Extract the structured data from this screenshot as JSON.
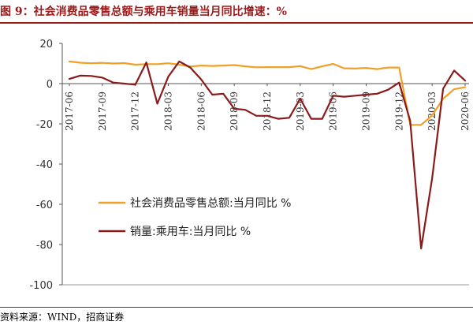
{
  "title": "图 9：社会消费品零售总额与乘用车销量当月同比增速：%",
  "source": "资料来源：WIND，招商证券",
  "colors": {
    "retail": "#f0a029",
    "auto": "#8b1a1a",
    "accent": "#9b1a1a"
  },
  "chart_data": {
    "type": "line",
    "title": "",
    "xlabel": "",
    "ylabel": "",
    "ylim": [
      -100,
      20
    ],
    "yticks": [
      20,
      0,
      -20,
      -40,
      -60,
      -80,
      -100
    ],
    "x": [
      "2017-06",
      "2017-07",
      "2017-08",
      "2017-09",
      "2017-10",
      "2017-11",
      "2017-12",
      "2018-01",
      "2018-02",
      "2018-03",
      "2018-04",
      "2018-05",
      "2018-06",
      "2018-07",
      "2018-08",
      "2018-09",
      "2018-10",
      "2018-11",
      "2018-12",
      "2019-01",
      "2019-02",
      "2019-03",
      "2019-04",
      "2019-05",
      "2019-06",
      "2019-07",
      "2019-08",
      "2019-09",
      "2019-10",
      "2019-11",
      "2019-12",
      "2020-01",
      "2020-02",
      "2020-03",
      "2020-04",
      "2020-05",
      "2020-06"
    ],
    "xtick_labels": [
      "2017-06",
      "2017-09",
      "2017-12",
      "2018-03",
      "2018-06",
      "2018-09",
      "2018-12",
      "2019-03",
      "2019-06",
      "2019-09",
      "2019-12",
      "2020-03",
      "2020-06"
    ],
    "legend": "inside-center-left",
    "series": [
      {
        "name": "社会消费品零售总额:当月同比 %",
        "values": [
          11.0,
          10.4,
          10.1,
          10.3,
          10.0,
          10.2,
          9.4,
          9.7,
          9.7,
          10.1,
          9.4,
          8.5,
          9.0,
          8.8,
          9.0,
          9.2,
          8.6,
          8.1,
          8.2,
          8.2,
          8.2,
          8.7,
          7.2,
          8.6,
          9.8,
          7.6,
          7.5,
          7.8,
          7.2,
          8.0,
          8.0,
          -20.5,
          -20.5,
          -15.8,
          -7.5,
          -2.8,
          -1.8
        ]
      },
      {
        "name": "销量:乘用车:当月同比 %",
        "values": [
          2.3,
          4.0,
          3.8,
          3.0,
          0.5,
          0.0,
          -0.5,
          10.5,
          -10.0,
          3.5,
          11.0,
          8.0,
          2.0,
          -5.5,
          -5.0,
          -12.5,
          -13.0,
          -16.0,
          -16.0,
          -17.5,
          -17.0,
          -7.5,
          -17.5,
          -17.5,
          -6.0,
          -6.5,
          -6.0,
          -5.5,
          -5.0,
          -3.0,
          0.5,
          -18.5,
          -82.0,
          -47.0,
          -2.5,
          6.5,
          1.5
        ]
      }
    ]
  }
}
